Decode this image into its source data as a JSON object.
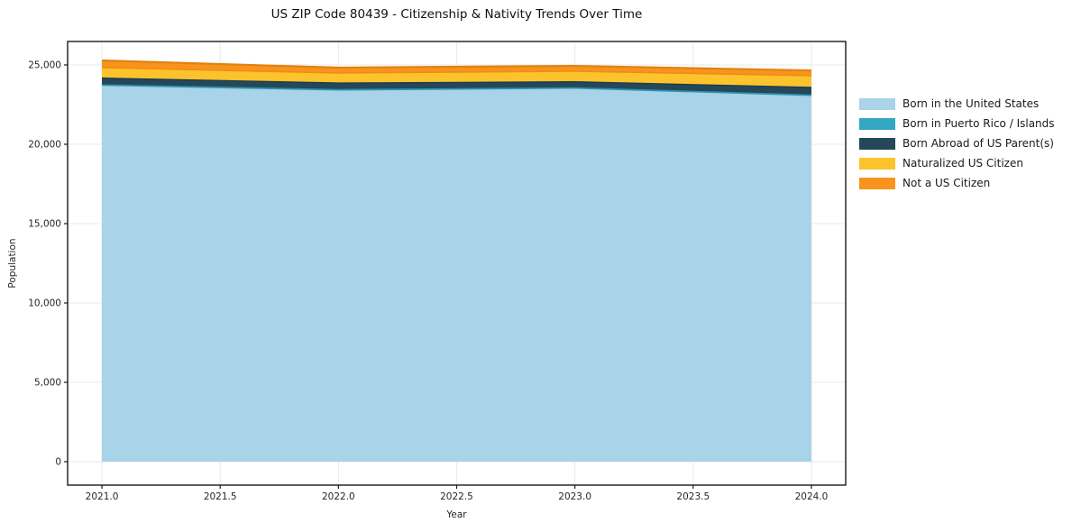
{
  "figure": {
    "title": "US ZIP Code 80439 - Citizenship & Nativity Trends Over Time",
    "xlabel": "Year",
    "ylabel": "Population",
    "background_color": "#ffffff",
    "spine_color": "#1a1a1a",
    "grid_color": "#e9e9e9",
    "tick_label_color": "#262626"
  },
  "chart_data": {
    "type": "area",
    "stacked": true,
    "title": "US ZIP Code 80439 - Citizenship & Nativity Trends Over Time",
    "xlabel": "Year",
    "ylabel": "Population",
    "x": [
      2021,
      2022,
      2023,
      2024
    ],
    "series": [
      {
        "name": "Born in the United States",
        "color": "#a9d3e8",
        "edge_color": null,
        "values": [
          23700,
          23410,
          23520,
          23070
        ]
      },
      {
        "name": "Born in Puerto Rico / Islands",
        "color": "#35a7c2",
        "edge_color": "#2f93ae",
        "values": [
          30,
          20,
          25,
          20
        ]
      },
      {
        "name": "Born Abroad of US Parent(s)",
        "color": "#25475a",
        "edge_color": "#1e3c4e",
        "values": [
          440,
          430,
          390,
          490
        ]
      },
      {
        "name": "Naturalized US Citizen",
        "color": "#fcc32d",
        "edge_color": "#ef8c12",
        "values": [
          660,
          630,
          670,
          740
        ]
      },
      {
        "name": "Not a US Citizen",
        "color": "#f8941e",
        "edge_color": "#e2820e",
        "values": [
          450,
          340,
          335,
          330
        ]
      }
    ],
    "xlim": [
      2020.855,
      2024.145
    ],
    "ylim": [
      -1477,
      26477
    ],
    "xticks": [
      2021.0,
      2021.5,
      2022.0,
      2022.5,
      2023.0,
      2023.5,
      2024.0
    ],
    "yticks": [
      0,
      5000,
      10000,
      15000,
      20000,
      25000
    ],
    "grid": true,
    "legend_position": "right"
  }
}
